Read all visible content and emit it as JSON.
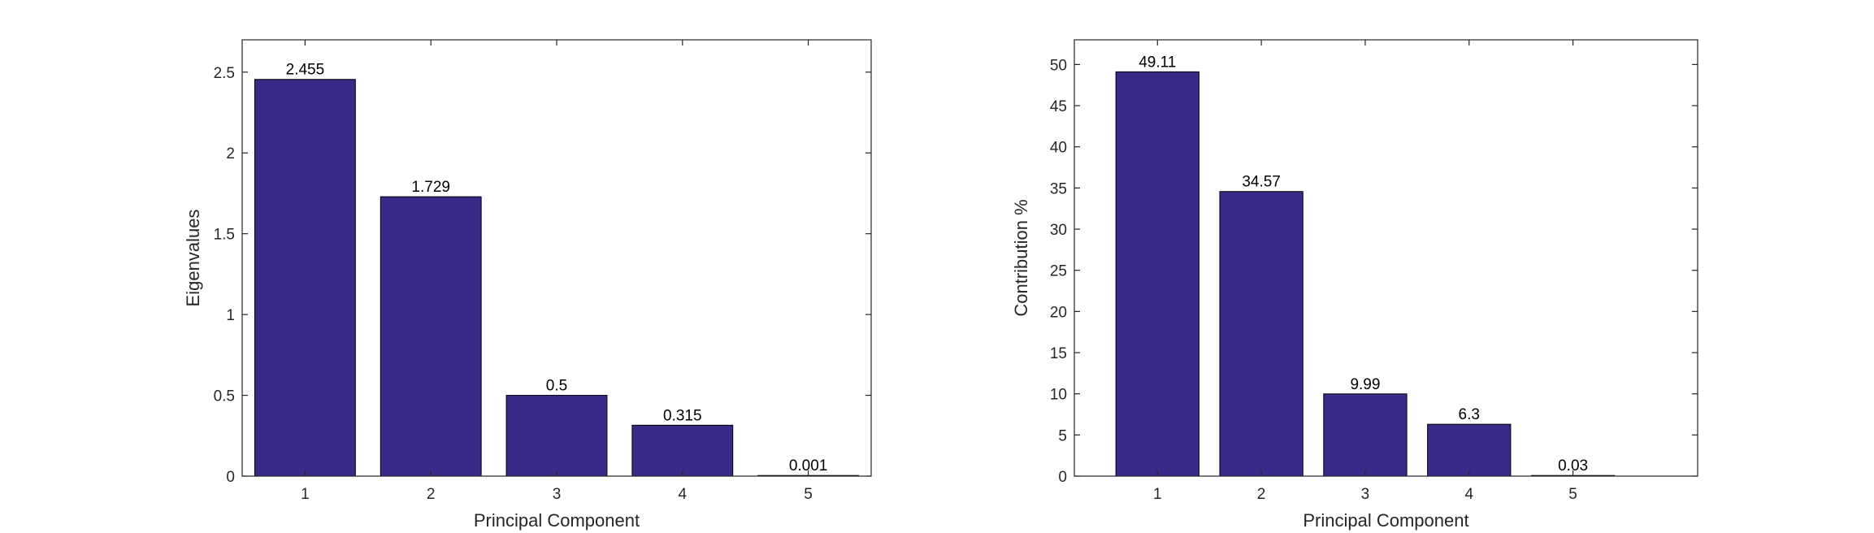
{
  "chart_data": [
    {
      "type": "bar",
      "categories": [
        "1",
        "2",
        "3",
        "4",
        "5"
      ],
      "values": [
        2.455,
        1.729,
        0.5,
        0.315,
        0.001
      ],
      "data_labels": [
        "2.455",
        "1.729",
        "0.5",
        "0.315",
        "0.001"
      ],
      "xlabel": "Principal Component",
      "ylabel": "Eigenvalues",
      "xlim": [
        0.5,
        5.5
      ],
      "ylim": [
        0,
        2.7
      ],
      "yticks": [
        0,
        0.5,
        1,
        1.5,
        2,
        2.5
      ],
      "ytick_labels": [
        "0",
        "0.5",
        "1",
        "1.5",
        "2",
        "2.5"
      ],
      "grid": false,
      "bar_color": "#372a89"
    },
    {
      "type": "bar",
      "categories": [
        "1",
        "2",
        "3",
        "4",
        "5"
      ],
      "values": [
        49.11,
        34.57,
        9.99,
        6.3,
        0.03
      ],
      "data_labels": [
        "49.11",
        "34.57",
        "9.99",
        "6.3",
        "0.03"
      ],
      "xlabel": "Principal Component",
      "ylabel": "Contribution %",
      "xlim": [
        0.2,
        6.2
      ],
      "ylim": [
        0,
        53
      ],
      "yticks": [
        0,
        5,
        10,
        15,
        20,
        25,
        30,
        35,
        40,
        45,
        50
      ],
      "ytick_labels": [
        "0",
        "5",
        "10",
        "15",
        "20",
        "25",
        "30",
        "35",
        "40",
        "45",
        "50"
      ],
      "grid": false,
      "bar_color": "#372a89"
    }
  ]
}
